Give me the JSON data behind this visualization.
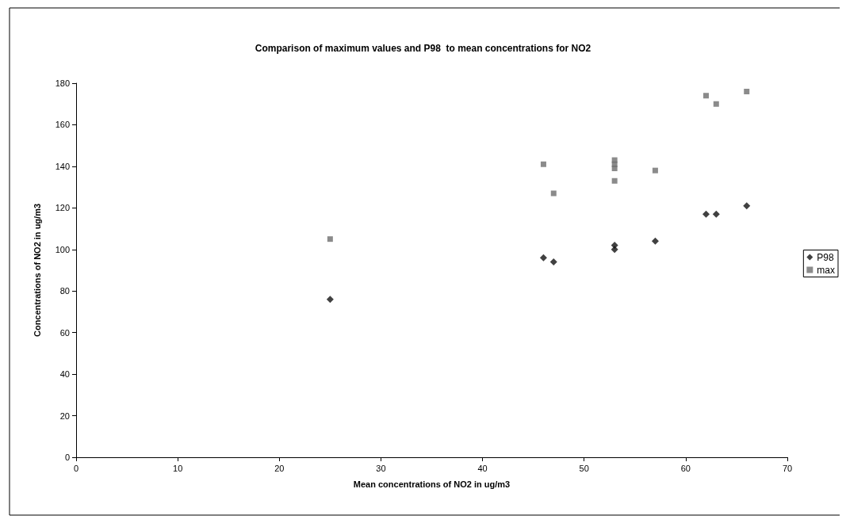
{
  "chart_data": {
    "type": "scatter",
    "title": "Comparison of maximum values and P98  to mean concentrations for NO2",
    "xlabel": "Mean concentrations of NO2 in ug/m3",
    "ylabel": "Concentrations of NO2 in ug/m3",
    "xlim": [
      0,
      70
    ],
    "xticks": [
      0,
      10,
      20,
      30,
      40,
      50,
      60,
      70
    ],
    "ylim": [
      0,
      180
    ],
    "yticks": [
      0,
      20,
      40,
      60,
      80,
      100,
      120,
      140,
      160,
      180
    ],
    "grid": false,
    "legend": "right",
    "series": [
      {
        "name": "P98",
        "color": "#111111",
        "marker": "diamond",
        "x": [
          25,
          46,
          47,
          53,
          53,
          57,
          62,
          63,
          66
        ],
        "values": [
          76,
          96,
          94,
          102,
          100,
          104,
          117,
          117,
          121
        ]
      },
      {
        "name": "max",
        "color": "#6e6e6e",
        "marker": "square",
        "x": [
          25,
          46,
          47,
          53,
          53,
          53,
          53,
          57,
          62,
          63,
          66
        ],
        "values": [
          105,
          141,
          127,
          133,
          143,
          141,
          139,
          138,
          174,
          170,
          176
        ]
      }
    ]
  }
}
